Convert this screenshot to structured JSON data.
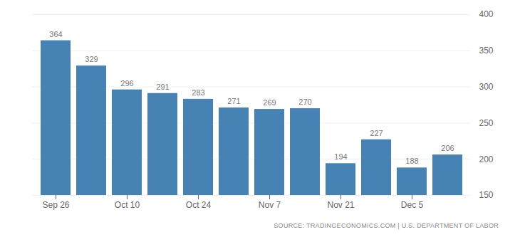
{
  "chart_data": {
    "type": "bar",
    "caption": "SOURCE: TRADINGECONOMICS.COM | U.S. DEPARTMENT OF LABOR",
    "categories": [
      "Sep 26",
      null,
      "Oct 10",
      null,
      "Oct 24",
      null,
      "Nov 7",
      null,
      "Nov 21",
      null,
      "Dec 5",
      null
    ],
    "values": [
      364,
      329,
      296,
      291,
      283,
      271,
      269,
      270,
      194,
      227,
      188,
      206
    ],
    "color": "#4682b4",
    "ylim": [
      150,
      400
    ],
    "yticks": [
      150,
      200,
      250,
      300,
      350,
      400
    ],
    "grid": true,
    "data_labels": true
  }
}
